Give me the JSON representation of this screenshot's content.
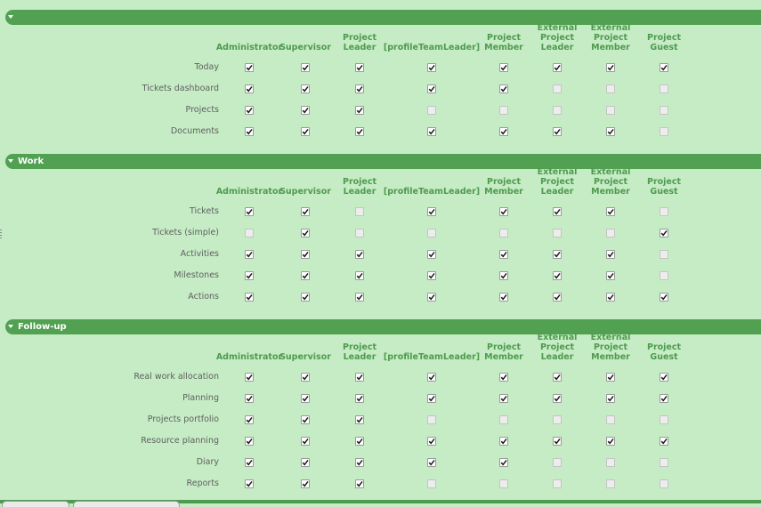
{
  "columns": [
    {
      "key": "administrator",
      "label": "Administrator"
    },
    {
      "key": "supervisor",
      "label": "Supervisor"
    },
    {
      "key": "project_leader",
      "label": "Project\nLeader"
    },
    {
      "key": "profile_team_leader",
      "label": "[profileTeamLeader]"
    },
    {
      "key": "project_member",
      "label": "Project\nMember"
    },
    {
      "key": "external_project_leader",
      "label": "External\nProject\nLeader"
    },
    {
      "key": "external_project_member",
      "label": "External\nProject\nMember"
    },
    {
      "key": "project_guest",
      "label": "Project\nGuest"
    }
  ],
  "sections": [
    {
      "title": "",
      "rows": [
        {
          "label": "Today",
          "checks": [
            true,
            true,
            true,
            true,
            true,
            true,
            true,
            true
          ]
        },
        {
          "label": "Tickets dashboard",
          "checks": [
            true,
            true,
            true,
            true,
            true,
            false,
            false,
            false
          ]
        },
        {
          "label": "Projects",
          "checks": [
            true,
            true,
            true,
            false,
            false,
            false,
            false,
            false
          ]
        },
        {
          "label": "Documents",
          "checks": [
            true,
            true,
            true,
            true,
            true,
            true,
            true,
            false
          ]
        }
      ]
    },
    {
      "title": "Work",
      "rows": [
        {
          "label": "Tickets",
          "checks": [
            true,
            true,
            false,
            true,
            true,
            true,
            true,
            false
          ]
        },
        {
          "label": "Tickets (simple)",
          "checks": [
            false,
            true,
            false,
            false,
            false,
            false,
            false,
            true
          ]
        },
        {
          "label": "Activities",
          "checks": [
            true,
            true,
            true,
            true,
            true,
            true,
            true,
            false
          ]
        },
        {
          "label": "Milestones",
          "checks": [
            true,
            true,
            true,
            true,
            true,
            true,
            true,
            false
          ]
        },
        {
          "label": "Actions",
          "checks": [
            true,
            true,
            true,
            true,
            true,
            true,
            true,
            true
          ]
        }
      ]
    },
    {
      "title": "Follow-up",
      "rows": [
        {
          "label": "Real work allocation",
          "checks": [
            true,
            true,
            true,
            true,
            true,
            true,
            true,
            true
          ]
        },
        {
          "label": "Planning",
          "checks": [
            true,
            true,
            true,
            true,
            true,
            true,
            true,
            true
          ]
        },
        {
          "label": "Projects portfolio",
          "checks": [
            true,
            true,
            true,
            false,
            false,
            false,
            false,
            false
          ]
        },
        {
          "label": "Resource planning",
          "checks": [
            true,
            true,
            true,
            true,
            true,
            true,
            true,
            true
          ]
        },
        {
          "label": "Diary",
          "checks": [
            true,
            true,
            true,
            true,
            true,
            false,
            false,
            false
          ]
        },
        {
          "label": "Reports",
          "checks": [
            true,
            true,
            true,
            false,
            false,
            false,
            false,
            false
          ]
        }
      ]
    }
  ],
  "icons": {
    "section_toggle": "chevron-down-icon",
    "check": "checkmark-icon"
  },
  "colors": {
    "background": "#c5ecc5",
    "header_bar": "#52a052",
    "column_header_text": "#4f9a4f",
    "row_label_text": "#606060"
  }
}
